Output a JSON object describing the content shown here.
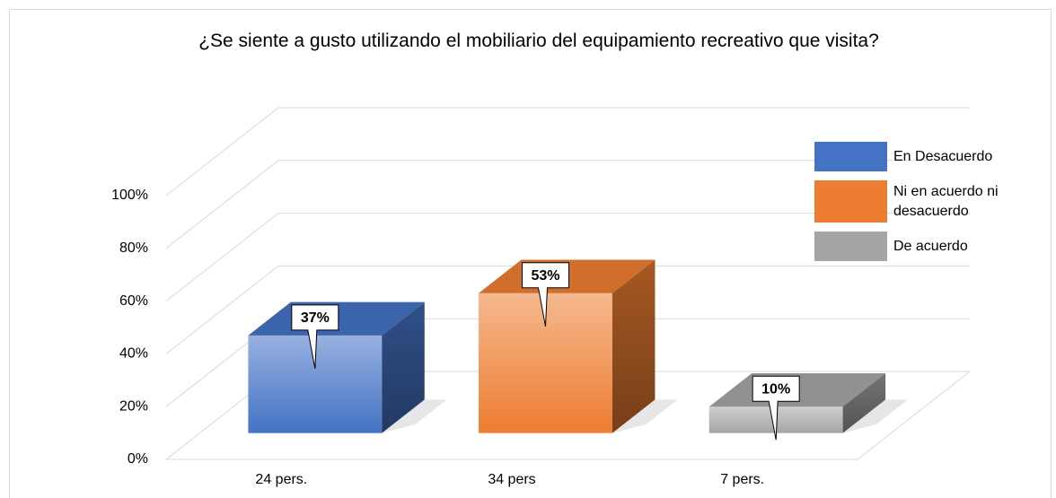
{
  "chart_data": {
    "type": "bar3d",
    "title": "¿Se siente a gusto utilizando el mobiliario del equipamiento recreativo que visita?",
    "categories": [
      "24 pers.",
      "34 pers",
      "7 pers."
    ],
    "series": [
      {
        "name": "En Desacuerdo",
        "color": "#4472c4",
        "values": [
          37,
          null,
          null
        ],
        "value_labels": [
          "37%",
          null,
          null
        ]
      },
      {
        "name": "Ni en acuerdo ni desacuerdo",
        "color": "#ed7d31",
        "values": [
          null,
          53,
          null
        ],
        "value_labels": [
          null,
          "53%",
          null
        ]
      },
      {
        "name": "De acuerdo",
        "color": "#a5a5a5",
        "values": [
          null,
          null,
          10
        ],
        "value_labels": [
          null,
          null,
          "10%"
        ]
      }
    ],
    "ylim": [
      0,
      100
    ],
    "yticks": [
      {
        "value": 0,
        "label": "0%"
      },
      {
        "value": 20,
        "label": "20%"
      },
      {
        "value": 40,
        "label": "40%"
      },
      {
        "value": 60,
        "label": "60%"
      },
      {
        "value": 80,
        "label": "80%"
      },
      {
        "value": 100,
        "label": "100%"
      }
    ],
    "grid": true,
    "legend": "top-right"
  }
}
